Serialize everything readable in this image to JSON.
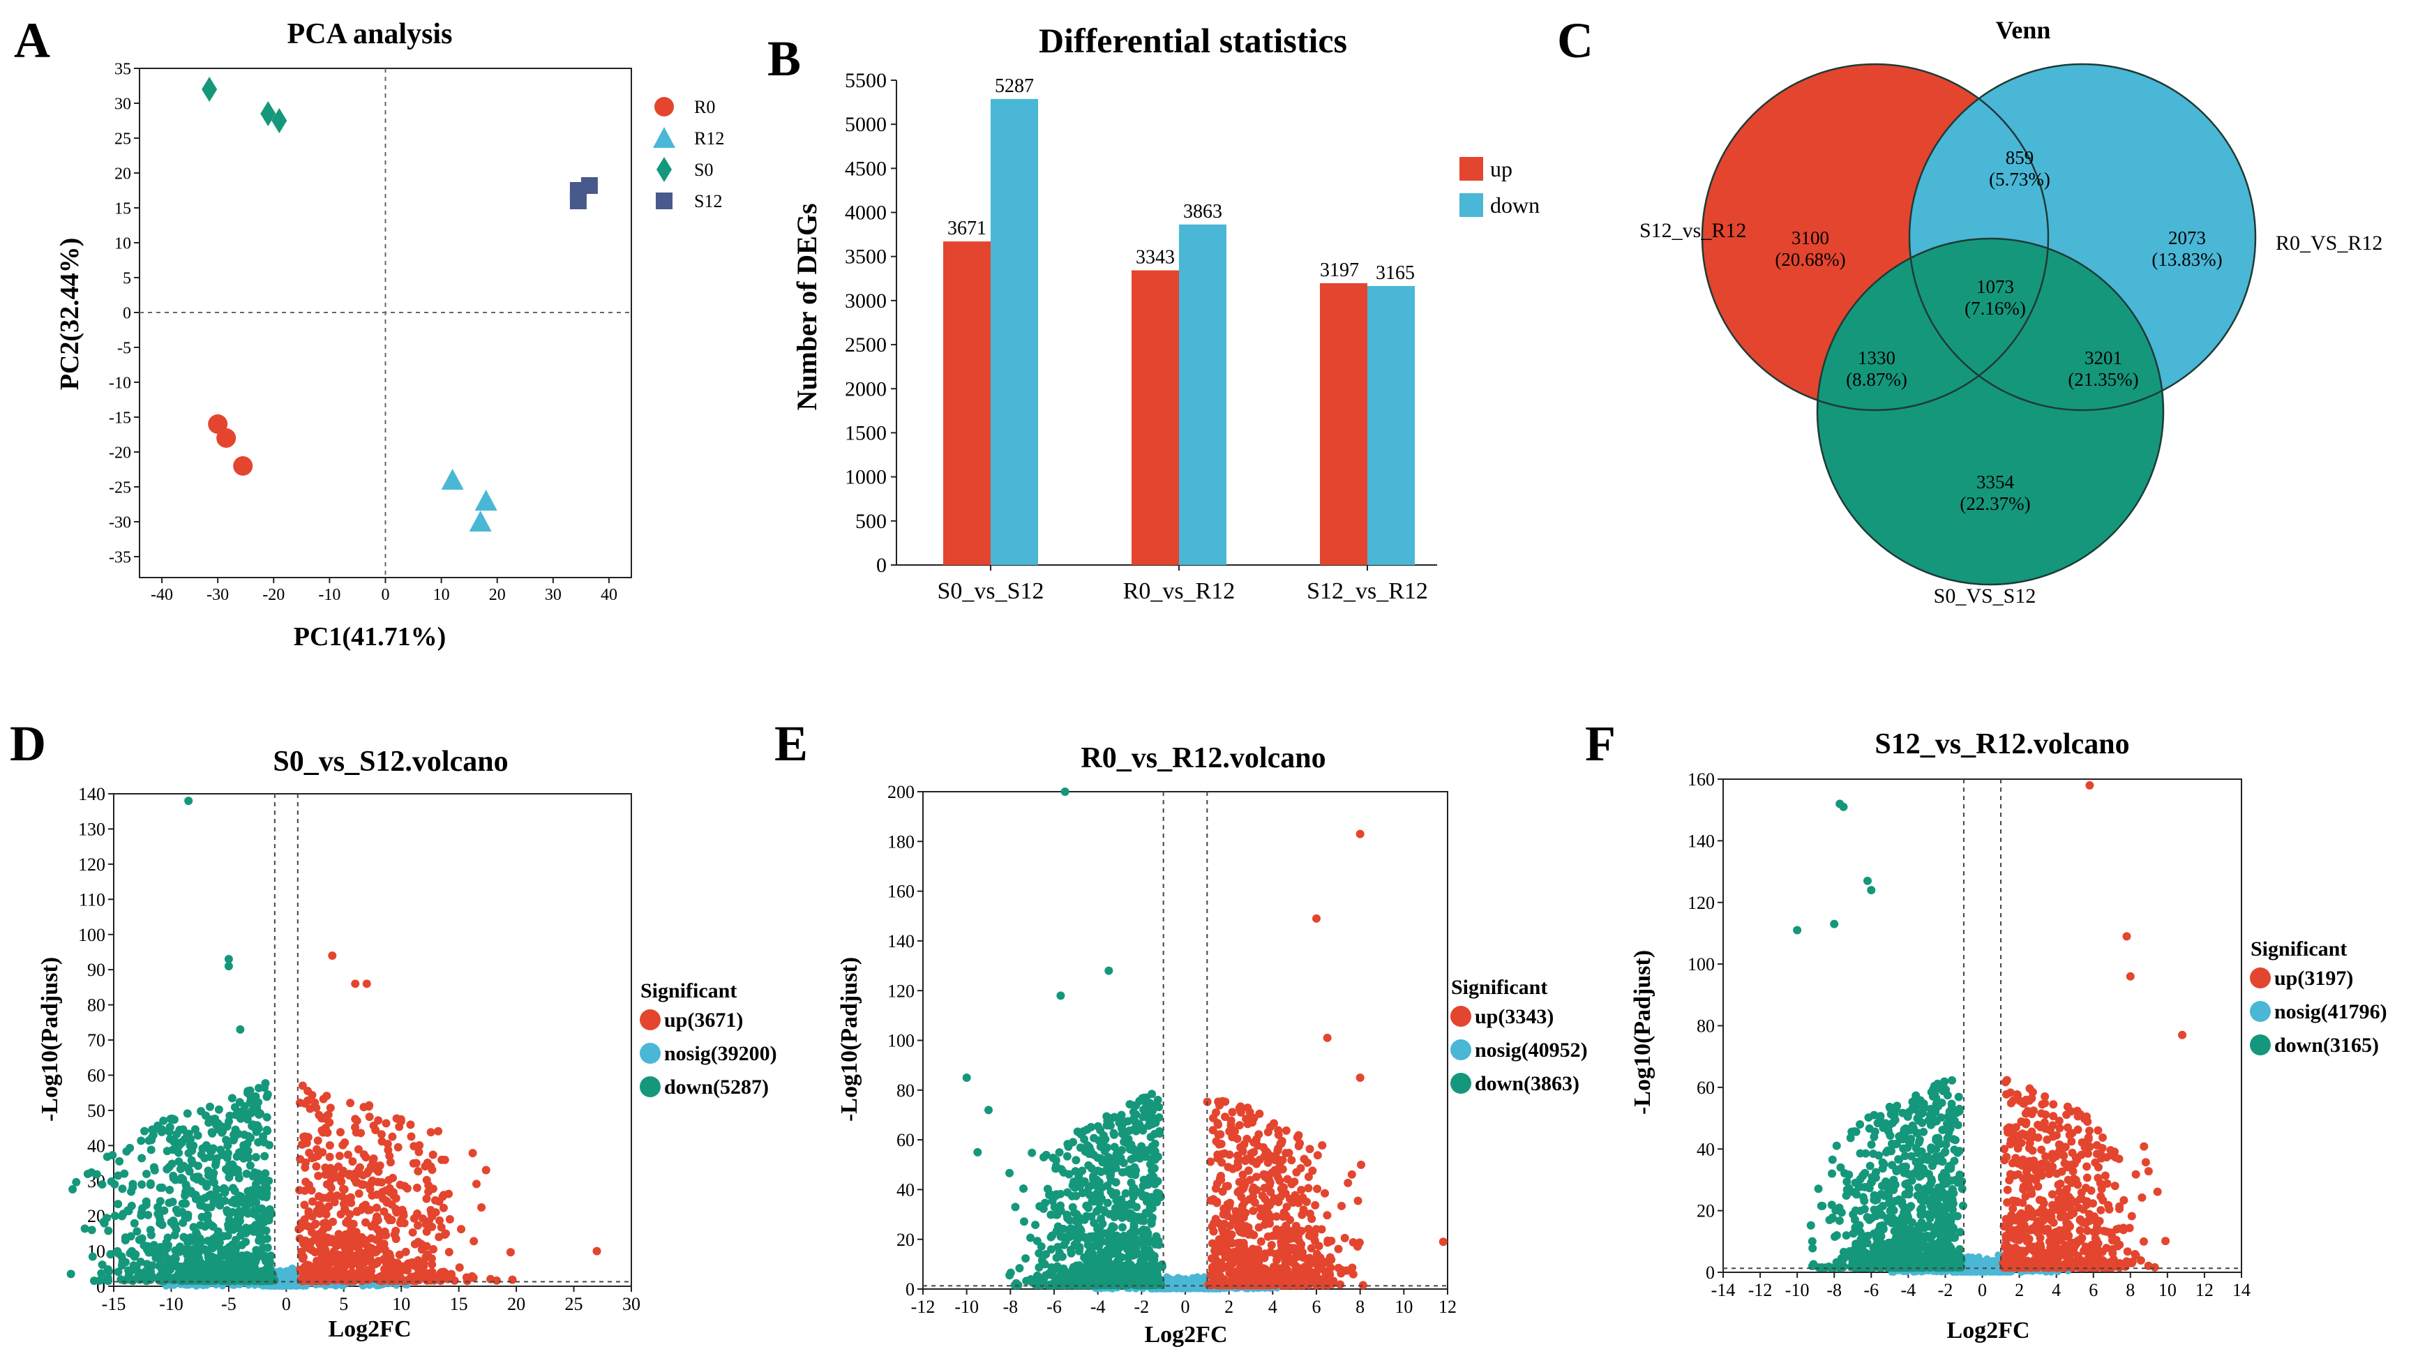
{
  "colors": {
    "red": "#e4452f",
    "blue": "#4ab7d6",
    "teal": "#15977b",
    "navy": "#48598b",
    "grid": "#555555"
  },
  "chart_data": [
    {
      "panel": "A",
      "type": "scatter",
      "title": "PCA analysis",
      "xlabel": "PC1(41.71%)",
      "ylabel": "PC2(32.44%)",
      "xlim": [
        -44,
        44
      ],
      "ylim": [
        -38,
        35
      ],
      "xticks": [
        -40,
        -30,
        -20,
        -10,
        0,
        10,
        20,
        30,
        40
      ],
      "yticks": [
        -35,
        -30,
        -25,
        -20,
        -15,
        -10,
        -5,
        0,
        5,
        10,
        15,
        20,
        25,
        30,
        35
      ],
      "series": [
        {
          "name": "R0",
          "marker": "circle",
          "color": "#e4452f",
          "points": [
            [
              -30,
              -16
            ],
            [
              -28.5,
              -18
            ],
            [
              -25.5,
              -22
            ]
          ]
        },
        {
          "name": "R12",
          "marker": "triangle",
          "color": "#4ab7d6",
          "points": [
            [
              12,
              -24
            ],
            [
              18,
              -27
            ],
            [
              17,
              -30
            ]
          ]
        },
        {
          "name": "S0",
          "marker": "diamond",
          "color": "#15977b",
          "points": [
            [
              -31.5,
              32
            ],
            [
              -21,
              28.5
            ],
            [
              -19,
              27.5
            ]
          ]
        },
        {
          "name": "S12",
          "marker": "square",
          "color": "#48598b",
          "points": [
            [
              34.5,
              17.5
            ],
            [
              36.5,
              18.2
            ],
            [
              34.5,
              16
            ]
          ]
        }
      ]
    },
    {
      "panel": "B",
      "type": "bar",
      "title": "Differential statistics",
      "xlabel": "",
      "ylabel": "Number of DEGs",
      "ylim": [
        0,
        5500
      ],
      "yticks": [
        0,
        500,
        1000,
        1500,
        2000,
        2500,
        3000,
        3500,
        4000,
        4500,
        5000,
        5500
      ],
      "categories": [
        "S0_vs_S12",
        "R0_vs_R12",
        "S12_vs_R12"
      ],
      "series": [
        {
          "name": "up",
          "color": "#e4452f",
          "values": [
            3671,
            3343,
            3197
          ]
        },
        {
          "name": "down",
          "color": "#4ab7d6",
          "values": [
            5287,
            3863,
            3165
          ]
        }
      ]
    },
    {
      "panel": "C",
      "type": "venn",
      "title": "Venn",
      "sets": [
        {
          "name": "S12_vs_R12",
          "color": "#e4452f"
        },
        {
          "name": "R0_VS_R12",
          "color": "#4ab7d6"
        },
        {
          "name": "S0_VS_S12",
          "color": "#15977b"
        }
      ],
      "regions": [
        {
          "label": "3100",
          "pct": "(20.68%)",
          "where": "s12r12-only"
        },
        {
          "label": "859",
          "pct": "(5.73%)",
          "where": "s12r12-r0r12"
        },
        {
          "label": "2073",
          "pct": "(13.83%)",
          "where": "r0r12-only"
        },
        {
          "label": "1073",
          "pct": "(7.16%)",
          "where": "center"
        },
        {
          "label": "1330",
          "pct": "(8.87%)",
          "where": "s12r12-s0s12"
        },
        {
          "label": "3201",
          "pct": "(21.35%)",
          "where": "r0r12-s0s12"
        },
        {
          "label": "3354",
          "pct": "(22.37%)",
          "where": "s0s12-only"
        }
      ]
    },
    {
      "panel": "D",
      "type": "scatter",
      "title": "S0_vs_S12.volcano",
      "xlabel": "Log2FC",
      "ylabel": "-Log10(Padjust)",
      "xlim": [
        -15,
        30
      ],
      "ylim": [
        0,
        140
      ],
      "xticks": [
        -15,
        -10,
        -5,
        0,
        5,
        10,
        15,
        20,
        25,
        30
      ],
      "yticks": [
        0,
        10,
        20,
        30,
        40,
        50,
        60,
        70,
        80,
        90,
        100,
        110,
        120,
        130,
        140
      ],
      "vlines": [
        -1,
        1
      ],
      "hline": 1.3,
      "legend_title": "Significant",
      "series": [
        {
          "name": "up(3671)",
          "color": "#e4452f"
        },
        {
          "name": "nosig(39200)",
          "color": "#4ab7d6"
        },
        {
          "name": "down(5287)",
          "color": "#15977b"
        }
      ],
      "outliers": {
        "down": [
          [
            -8.5,
            138
          ],
          [
            -5,
            93
          ],
          [
            -5,
            91
          ],
          [
            -4,
            73
          ]
        ],
        "up": [
          [
            4,
            94
          ],
          [
            6,
            86
          ],
          [
            7,
            86
          ],
          [
            27,
            10
          ],
          [
            13,
            21
          ]
        ]
      }
    },
    {
      "panel": "E",
      "type": "scatter",
      "title": "R0_vs_R12.volcano",
      "xlabel": "Log2FC",
      "ylabel": "-Log10(Padjust)",
      "xlim": [
        -12,
        12
      ],
      "ylim": [
        0,
        200
      ],
      "xticks": [
        -12,
        -10,
        -8,
        -6,
        -4,
        -2,
        0,
        2,
        4,
        6,
        8,
        10,
        12
      ],
      "yticks": [
        0,
        20,
        40,
        60,
        80,
        100,
        120,
        140,
        160,
        180,
        200
      ],
      "vlines": [
        -1,
        1
      ],
      "hline": 1.3,
      "legend_title": "Significant",
      "series": [
        {
          "name": "up(3343)",
          "color": "#e4452f"
        },
        {
          "name": "nosig(40952)",
          "color": "#4ab7d6"
        },
        {
          "name": "down(3863)",
          "color": "#15977b"
        }
      ],
      "outliers": {
        "down": [
          [
            -5.5,
            200
          ],
          [
            -3.5,
            128
          ],
          [
            -5.7,
            118
          ],
          [
            -10,
            85
          ],
          [
            -9,
            72
          ],
          [
            -9.5,
            55
          ]
        ],
        "up": [
          [
            8,
            183
          ],
          [
            6,
            149
          ],
          [
            6.5,
            101
          ],
          [
            8,
            85
          ],
          [
            11.8,
            19
          ]
        ]
      }
    },
    {
      "panel": "F",
      "type": "scatter",
      "title": "S12_vs_R12.volcano",
      "xlabel": "Log2FC",
      "ylabel": "-Log10(Padjust)",
      "xlim": [
        -14,
        14
      ],
      "ylim": [
        0,
        160
      ],
      "xticks": [
        -14,
        -12,
        -10,
        -8,
        -6,
        -4,
        -2,
        0,
        2,
        4,
        6,
        8,
        10,
        12,
        14
      ],
      "yticks": [
        0,
        20,
        40,
        60,
        80,
        100,
        120,
        140,
        160
      ],
      "vlines": [
        -1,
        1
      ],
      "hline": 1.3,
      "legend_title": "Significant",
      "series": [
        {
          "name": "up(3197)",
          "color": "#e4452f"
        },
        {
          "name": "nosig(41796)",
          "color": "#4ab7d6"
        },
        {
          "name": "down(3165)",
          "color": "#15977b"
        }
      ],
      "outliers": {
        "down": [
          [
            -7.7,
            152
          ],
          [
            -7.5,
            151
          ],
          [
            -6.2,
            127
          ],
          [
            -6,
            124
          ],
          [
            -10,
            111
          ],
          [
            -8,
            113
          ]
        ],
        "up": [
          [
            5.8,
            158
          ],
          [
            7.8,
            109
          ],
          [
            8,
            96
          ],
          [
            10.8,
            77
          ]
        ]
      }
    }
  ]
}
